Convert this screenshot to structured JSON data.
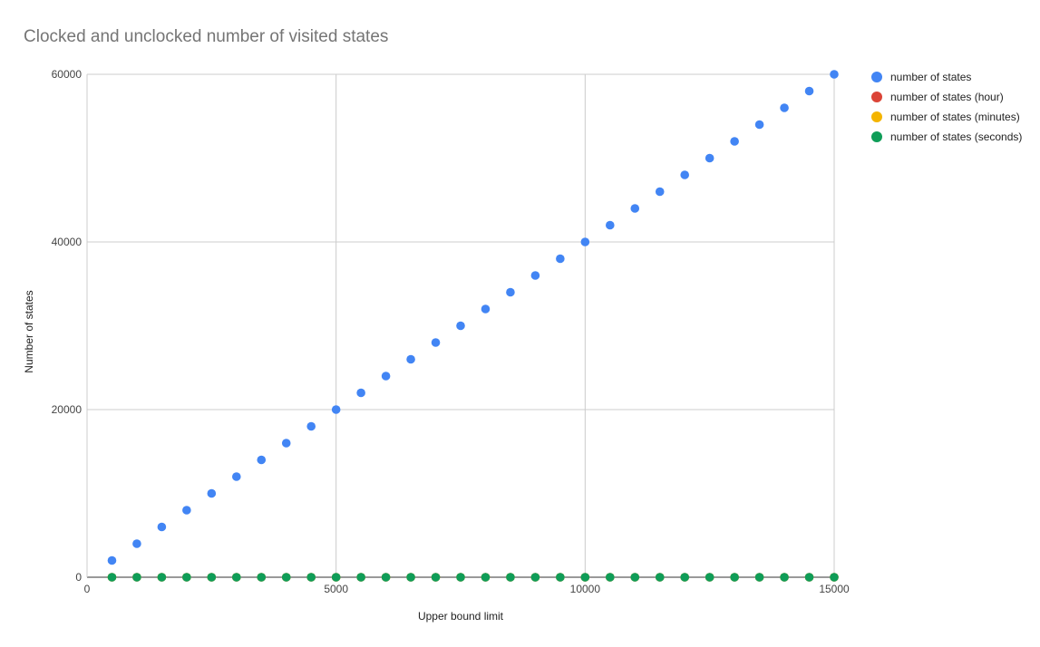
{
  "title": "Clocked and unclocked number of visited states",
  "chart_data": {
    "type": "scatter",
    "title": "Clocked and unclocked number of visited states",
    "xlabel": "Upper bound limit",
    "ylabel": "Number of states",
    "xlim": [
      0,
      15000
    ],
    "ylim": [
      0,
      60000
    ],
    "x_ticks": [
      0,
      5000,
      10000,
      15000
    ],
    "y_ticks": [
      0,
      20000,
      40000,
      60000
    ],
    "grid": true,
    "legend_position": "right",
    "x": [
      500,
      1000,
      1500,
      2000,
      2500,
      3000,
      3500,
      4000,
      4500,
      5000,
      5500,
      6000,
      6500,
      7000,
      7500,
      8000,
      8500,
      9000,
      9500,
      10000,
      10500,
      11000,
      11500,
      12000,
      12500,
      13000,
      13500,
      14000,
      14500,
      15000
    ],
    "series": [
      {
        "name": "number of states",
        "color": "#4285f4",
        "values": [
          2000,
          4000,
          6000,
          8000,
          10000,
          12000,
          14000,
          16000,
          18000,
          20000,
          22000,
          24000,
          26000,
          28000,
          30000,
          32000,
          34000,
          36000,
          38000,
          40000,
          42000,
          44000,
          46000,
          48000,
          50000,
          52000,
          54000,
          56000,
          58000,
          60000
        ]
      },
      {
        "name": "number of states (hour)",
        "color": "#db4437",
        "values": [
          0,
          0,
          0,
          0,
          0,
          0,
          0,
          0,
          0,
          0,
          0,
          0,
          0,
          0,
          0,
          0,
          0,
          0,
          0,
          0,
          0,
          0,
          0,
          0,
          0,
          0,
          0,
          0,
          0,
          0
        ]
      },
      {
        "name": "number of states (minutes)",
        "color": "#f4b400",
        "values": [
          0,
          0,
          0,
          0,
          0,
          0,
          0,
          0,
          0,
          0,
          0,
          0,
          0,
          0,
          0,
          0,
          0,
          0,
          0,
          0,
          0,
          0,
          0,
          0,
          0,
          0,
          0,
          0,
          0,
          0
        ]
      },
      {
        "name": "number of states (seconds)",
        "color": "#0f9d58",
        "values": [
          0,
          0,
          0,
          0,
          0,
          0,
          0,
          0,
          0,
          0,
          0,
          0,
          0,
          0,
          0,
          0,
          0,
          0,
          0,
          0,
          0,
          0,
          0,
          0,
          0,
          0,
          0,
          0,
          0,
          0
        ]
      }
    ]
  }
}
